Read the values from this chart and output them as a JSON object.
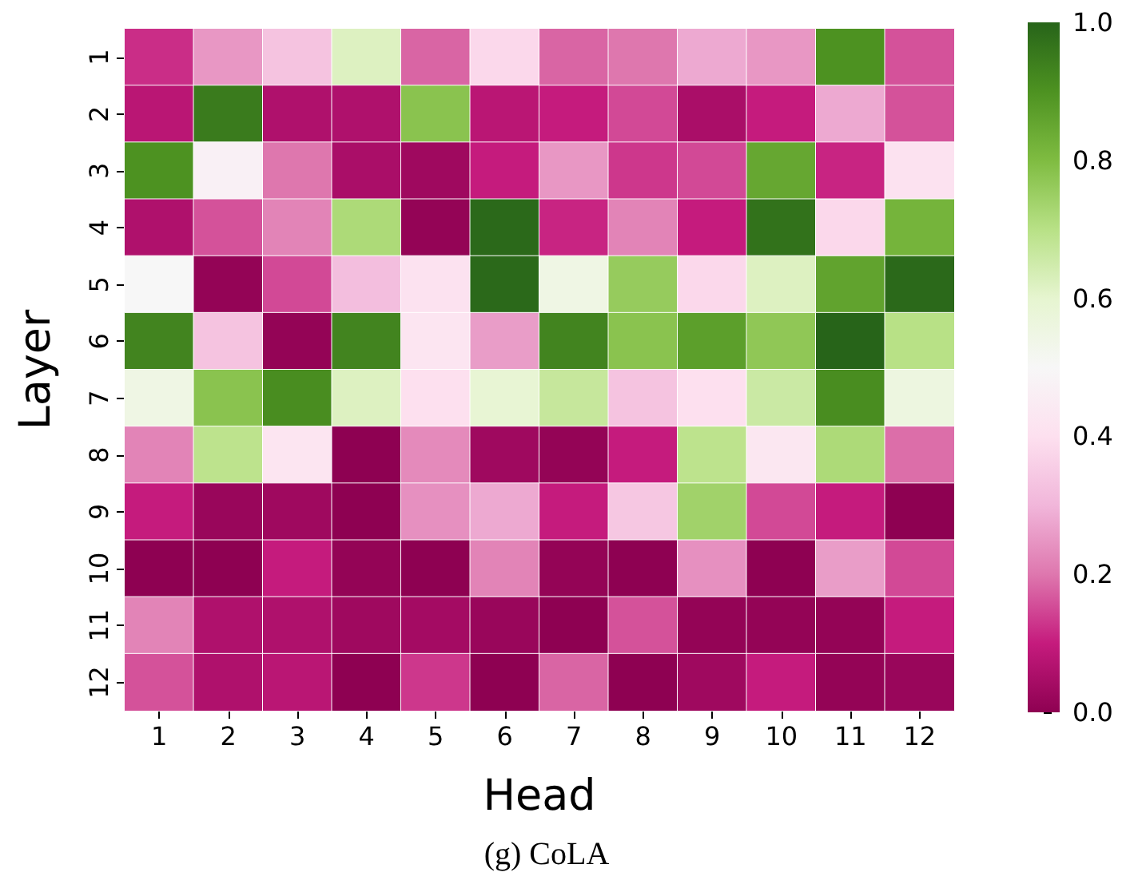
{
  "chart_data": {
    "type": "heatmap",
    "title": "(g) CoLA",
    "xlabel": "Head",
    "ylabel": "Layer",
    "categories": [
      "1",
      "2",
      "3",
      "4",
      "5",
      "6",
      "7",
      "8",
      "9",
      "10",
      "11",
      "12"
    ],
    "y_categories": [
      "1",
      "2",
      "3",
      "4",
      "5",
      "6",
      "7",
      "8",
      "9",
      "10",
      "11",
      "12"
    ],
    "cells": [
      [
        0.12,
        0.25,
        0.33,
        0.62,
        0.18,
        0.38,
        0.18,
        0.2,
        0.28,
        0.25,
        0.9,
        0.16
      ],
      [
        0.08,
        0.95,
        0.06,
        0.06,
        0.78,
        0.08,
        0.1,
        0.15,
        0.05,
        0.1,
        0.28,
        0.16
      ],
      [
        0.9,
        0.47,
        0.2,
        0.05,
        0.03,
        0.1,
        0.25,
        0.13,
        0.15,
        0.85,
        0.11,
        0.41
      ],
      [
        0.06,
        0.16,
        0.22,
        0.72,
        0.01,
        0.99,
        0.11,
        0.22,
        0.1,
        0.97,
        0.38,
        0.82
      ],
      [
        0.5,
        0.01,
        0.15,
        0.32,
        0.41,
        0.99,
        0.55,
        0.76,
        0.38,
        0.62,
        0.86,
        0.99
      ],
      [
        0.93,
        0.33,
        0.01,
        0.93,
        0.42,
        0.26,
        0.93,
        0.78,
        0.87,
        0.77,
        1.0,
        0.7
      ],
      [
        0.55,
        0.78,
        0.91,
        0.62,
        0.4,
        0.59,
        0.67,
        0.33,
        0.4,
        0.66,
        0.91,
        0.56
      ],
      [
        0.22,
        0.69,
        0.42,
        0.0,
        0.23,
        0.03,
        0.01,
        0.1,
        0.69,
        0.43,
        0.72,
        0.19
      ],
      [
        0.1,
        0.02,
        0.03,
        0.0,
        0.24,
        0.28,
        0.1,
        0.34,
        0.74,
        0.15,
        0.1,
        0.0
      ],
      [
        0.0,
        0.0,
        0.1,
        0.01,
        0.0,
        0.22,
        0.01,
        0.0,
        0.24,
        0.0,
        0.26,
        0.15
      ],
      [
        0.22,
        0.06,
        0.06,
        0.03,
        0.04,
        0.02,
        0.0,
        0.16,
        0.01,
        0.01,
        0.01,
        0.1
      ],
      [
        0.16,
        0.06,
        0.08,
        0.0,
        0.13,
        0.0,
        0.18,
        0.0,
        0.03,
        0.1,
        0.01,
        0.02
      ]
    ],
    "clim": [
      0,
      1
    ],
    "cticks": [
      {
        "value": 0,
        "label": "0.0"
      },
      {
        "value": 0.2,
        "label": "0.2"
      },
      {
        "value": 0.4,
        "label": "0.4"
      },
      {
        "value": 0.6,
        "label": "0.6"
      },
      {
        "value": 0.8,
        "label": "0.8"
      },
      {
        "value": 1,
        "label": "1.0"
      }
    ]
  }
}
